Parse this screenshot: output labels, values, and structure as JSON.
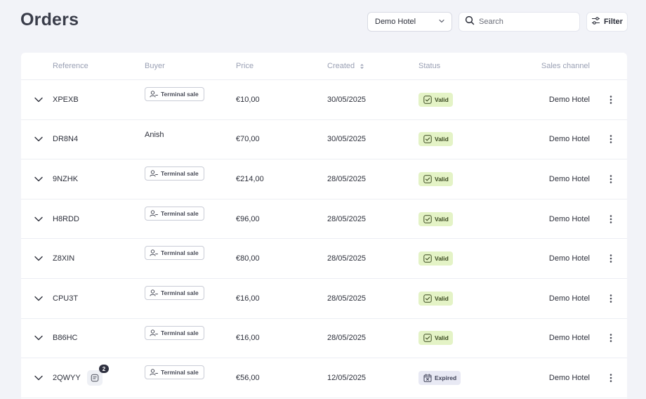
{
  "header": {
    "title": "Orders",
    "hotel_select": "Demo Hotel",
    "search_placeholder": "Search",
    "filter_label": "Filter"
  },
  "table": {
    "columns": {
      "reference": "Reference",
      "buyer": "Buyer",
      "price": "Price",
      "created": "Created",
      "status": "Status",
      "sales_channel": "Sales channel"
    },
    "rows": [
      {
        "reference": "XPEXB",
        "buyer_type": "chip",
        "buyer": "Terminal sale",
        "price": "€10,00",
        "created": "30/05/2025",
        "status": "Valid",
        "channel": "Demo Hotel"
      },
      {
        "reference": "DR8N4",
        "buyer_type": "text",
        "buyer": "Anish",
        "price": "€70,00",
        "created": "30/05/2025",
        "status": "Valid",
        "channel": "Demo Hotel"
      },
      {
        "reference": "9NZHK",
        "buyer_type": "chip",
        "buyer": "Terminal sale",
        "price": "€214,00",
        "created": "28/05/2025",
        "status": "Valid",
        "channel": "Demo Hotel"
      },
      {
        "reference": "H8RDD",
        "buyer_type": "chip",
        "buyer": "Terminal sale",
        "price": "€96,00",
        "created": "28/05/2025",
        "status": "Valid",
        "channel": "Demo Hotel"
      },
      {
        "reference": "Z8XIN",
        "buyer_type": "chip",
        "buyer": "Terminal sale",
        "price": "€80,00",
        "created": "28/05/2025",
        "status": "Valid",
        "channel": "Demo Hotel"
      },
      {
        "reference": "CPU3T",
        "buyer_type": "chip",
        "buyer": "Terminal sale",
        "price": "€16,00",
        "created": "28/05/2025",
        "status": "Valid",
        "channel": "Demo Hotel"
      },
      {
        "reference": "B86HC",
        "buyer_type": "chip",
        "buyer": "Terminal sale",
        "price": "€16,00",
        "created": "28/05/2025",
        "status": "Valid",
        "channel": "Demo Hotel"
      },
      {
        "reference": "2QWYY",
        "buyer_type": "chip",
        "buyer": "Terminal sale",
        "price": "€56,00",
        "created": "12/05/2025",
        "status": "Expired",
        "channel": "Demo Hotel",
        "notes_count": "2"
      }
    ]
  },
  "colors": {
    "background": "#f2f3f8",
    "valid_badge": "#e4f3c6",
    "expired_badge": "#e8e9f4",
    "header_text": "#9aa0b4"
  },
  "icons": {
    "select": "chevron-down-icon",
    "search": "search-icon",
    "filter": "sliders-icon",
    "expand": "chevron-down-icon",
    "buyer": "user-icon",
    "valid": "check-square-icon",
    "expired": "calendar-x-icon",
    "more": "more-vertical-icon",
    "notes": "note-icon"
  }
}
